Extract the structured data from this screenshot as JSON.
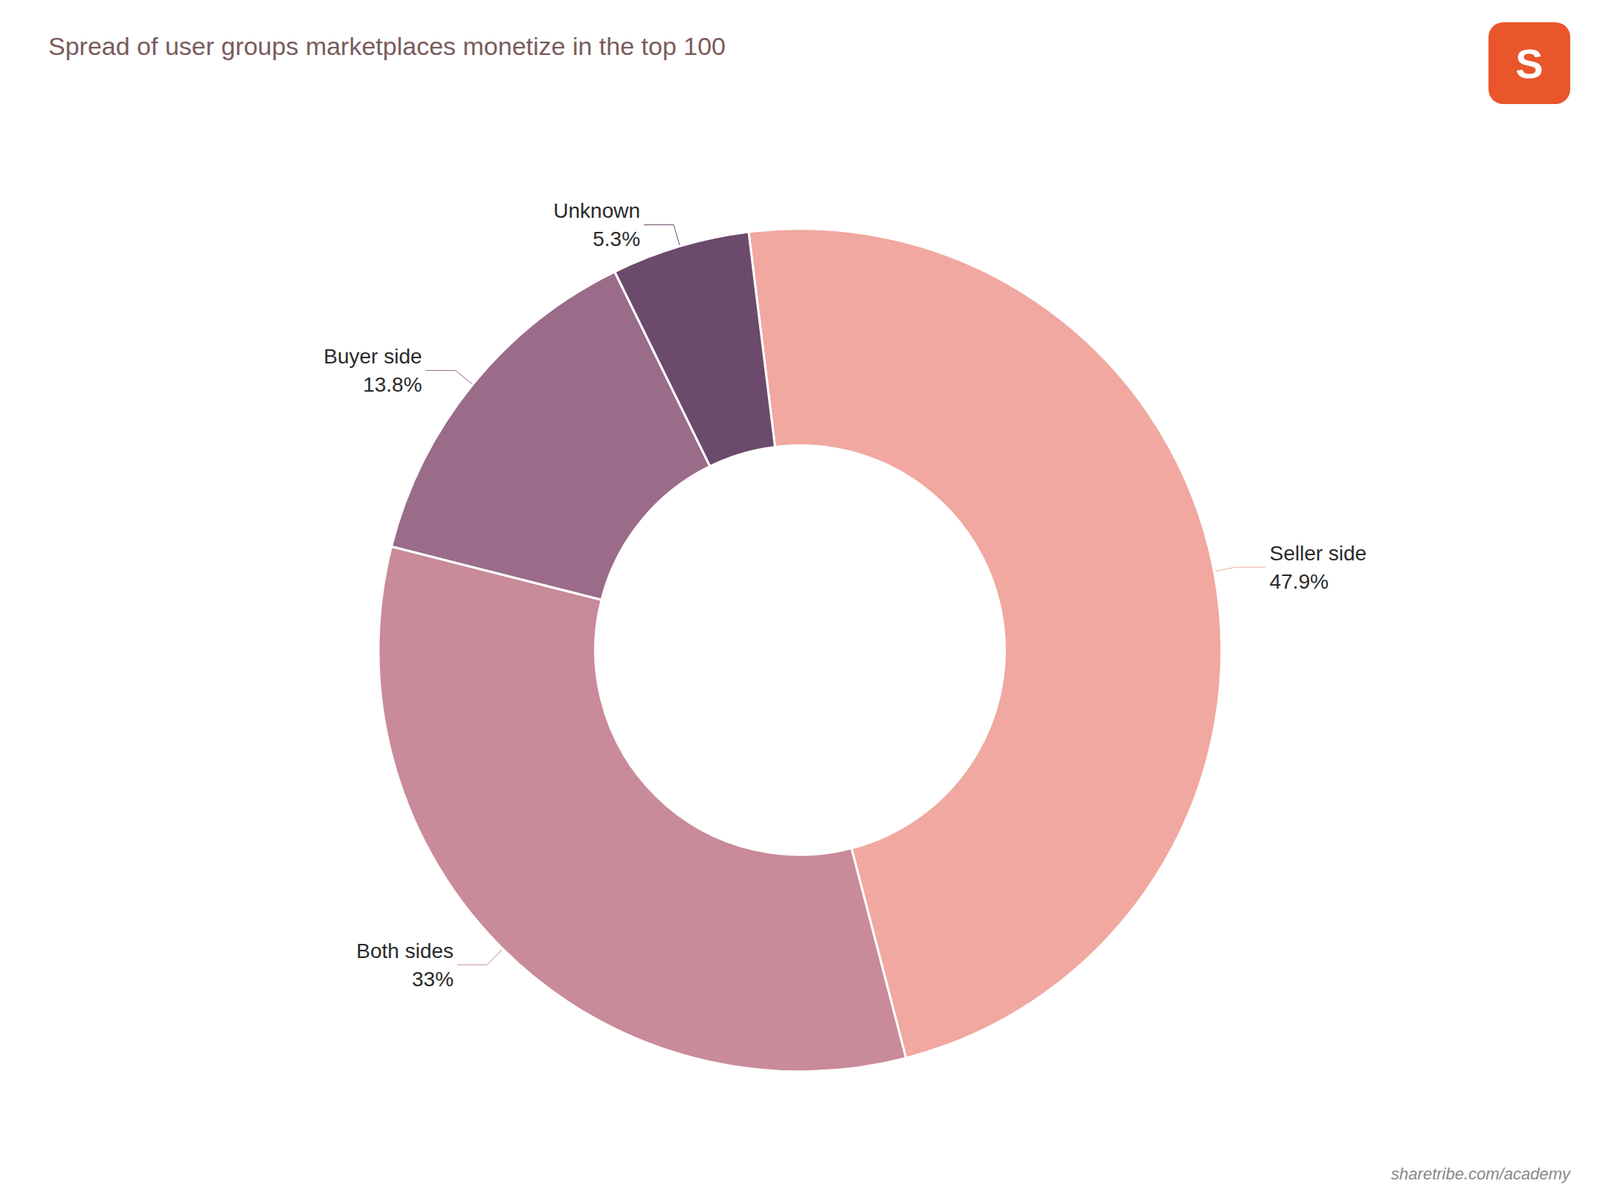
{
  "chart_data": {
    "type": "pie",
    "title": "Spread of user groups marketplaces monetize in the top 100",
    "categories": [
      "Seller side",
      "Both sides",
      "Buyer side",
      "Unknown"
    ],
    "values": [
      47.9,
      33.0,
      13.8,
      5.3
    ],
    "value_labels": [
      "47.9%",
      "33%",
      "13.8%",
      "5.3%"
    ],
    "colors": [
      "#f0a8a0",
      "#c98a9a",
      "#9b6b8a",
      "#6b4a6b"
    ],
    "data_labels": true,
    "annotations": [
      "sharetribe.com/academy",
      "S"
    ]
  }
}
